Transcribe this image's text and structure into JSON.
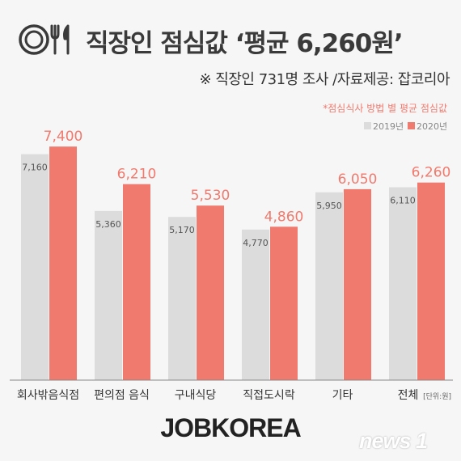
{
  "title": "직장인 점심값 ‘평균 6,260원’",
  "subtitle": "※ 직장인 731명 조사 /자료제공: 잡코리아",
  "icon": "dining-utensils-icon",
  "unit_note": "[단위:원]",
  "logo": "JOBKOREA",
  "watermark": "news 1",
  "colors": {
    "series_2019": "#dcdcdc",
    "series_2020": "#f07a6e",
    "accent": "#f07a6e"
  },
  "chart_data": {
    "type": "bar",
    "title": "*점심식사 방법 별 평균 점심값",
    "categories": [
      "회사밖음식점",
      "편의점 음식",
      "구내식당",
      "직접도시락",
      "기타",
      "전체"
    ],
    "series": [
      {
        "name": "2019년",
        "values": [
          7160,
          5360,
          5170,
          4770,
          5950,
          6110
        ]
      },
      {
        "name": "2020년",
        "values": [
          7400,
          6210,
          5530,
          4860,
          6050,
          6260
        ]
      }
    ],
    "value_labels": {
      "2019년": [
        "7,160",
        "5,360",
        "5,170",
        "4,770",
        "5,950",
        "6,110"
      ],
      "2020년": [
        "7,400",
        "6,210",
        "5,530",
        "4,860",
        "6,050",
        "6,260"
      ]
    },
    "ylim": [
      0,
      8200
    ],
    "legend_position": "top-right",
    "grid": false
  }
}
